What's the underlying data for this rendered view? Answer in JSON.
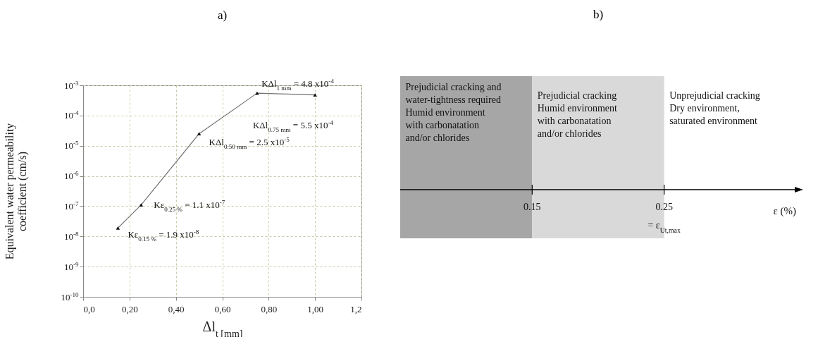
{
  "chart_data": [
    {
      "type": "line",
      "title": "a)",
      "xlabel": "Δl$_{t  [mm]}$",
      "ylabel": "Equivalent water permeability coefficient (cm/s)",
      "x": [
        0.15,
        0.25,
        0.5,
        0.75,
        1.0
      ],
      "series": [
        {
          "color": "#707070",
          "values": [
            1.9e-08,
            1.1e-07,
            2.5e-05,
            0.00055,
            0.00048
          ]
        }
      ],
      "xlim": [
        0,
        1.2
      ],
      "xticks": [
        {
          "value": 0,
          "label": "0,0"
        },
        {
          "value": 0.2,
          "label": "0,20"
        },
        {
          "value": 0.4,
          "label": "0,40"
        },
        {
          "value": 0.6,
          "label": "0,60"
        },
        {
          "value": 0.8,
          "label": "0,80"
        },
        {
          "value": 1.0,
          "label": "1,00"
        },
        {
          "value": 1.2,
          "label": "1,2"
        }
      ],
      "ylim": [
        1e-10,
        0.001
      ],
      "yticks": [
        {
          "value": 1e-10,
          "label": "10$^{-10}$"
        },
        {
          "value": 1e-09,
          "label": "10$^{-9}$"
        },
        {
          "value": 1e-08,
          "label": "10$^{-8}$"
        },
        {
          "value": 1e-07,
          "label": "10$^{-7}$"
        },
        {
          "value": 1e-06,
          "label": "10$^{-6}$"
        },
        {
          "value": 1e-05,
          "label": "10$^{-5}$"
        },
        {
          "value": 0.0001,
          "label": "10$^{-4}$"
        },
        {
          "value": 0.001,
          "label": "10$^{-3}$"
        }
      ],
      "log": "y",
      "grid": true,
      "marker": "triangle",
      "line_style": "solid",
      "annotations": [
        {
          "text": "Kε$_{0.15 %}$ = 1.9 x10$^{-8}$",
          "x": 0.15,
          "y": 1.9e-08
        },
        {
          "text": "Kε$_{0.25 %}$ = 1.1 x10$^{-7}$",
          "x": 0.25,
          "y": 1.1e-07
        },
        {
          "text": "KΔl$_{0.50 mm}$ = 2.5 x10$^{-5}$",
          "x": 0.5,
          "y": 2.5e-05
        },
        {
          "text": "KΔl$_{0.75 mm}$ = 5.5 x10$^{-4}$",
          "x": 0.75,
          "y": 0.00055
        },
        {
          "text": "KΔl$_{1 mm}$ = 4.8 x10$^{-4}$",
          "x": 1.0,
          "y": 0.00048
        }
      ]
    },
    {
      "type": "other",
      "title": "b)",
      "xlabel": "ε  (%)",
      "annotations": [
        "Prejudicial cracking and\nwater-tightness required\n\nHumid environment\n  with carbonatation\n  and/or chlorides",
        "Prejudicial cracking\n\nHumid environment\nwith carbonatation\nand/or chlorides",
        "Unprejudicial cracking\n\nDry environment,\nsaturated environment",
        "0.15",
        "0.25",
        "= ε$_{Ut,max}$"
      ]
    }
  ]
}
